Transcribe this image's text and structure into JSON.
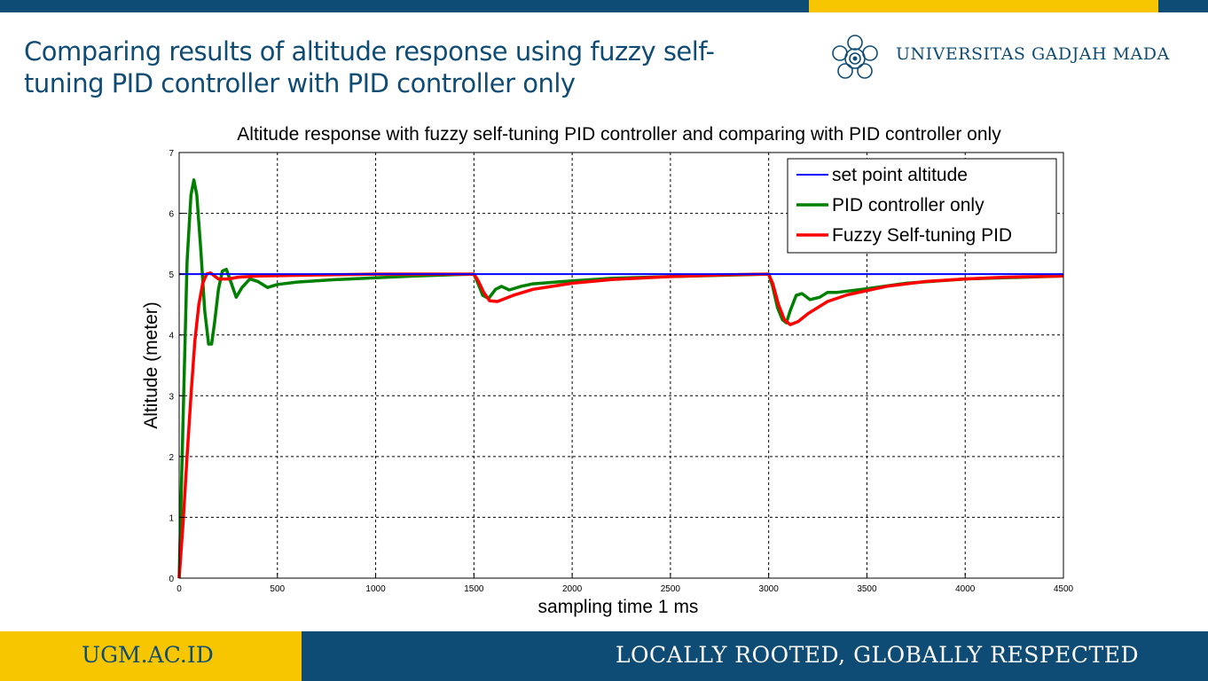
{
  "slide": {
    "title": "Comparing results of altitude response using fuzzy self-tuning PID controller with PID controller only"
  },
  "brand": {
    "university": "UNIVERSITAS GADJAH MADA",
    "logo_icon": "ugm-emblem-icon",
    "primary_color": "#0f4c75",
    "accent_color": "#f7c600"
  },
  "footer": {
    "website": "UGM.AC.ID",
    "tagline": "LOCALLY ROOTED, GLOBALLY RESPECTED"
  },
  "chart_data": {
    "type": "line",
    "title": "Altitude response with fuzzy self-tuning PID controller and comparing with PID controller only",
    "xlabel": "sampling time 1 ms",
    "ylabel": "Altitude (meter)",
    "xlim": [
      0,
      4500
    ],
    "ylim": [
      0,
      7
    ],
    "xticks": [
      0,
      500,
      1000,
      1500,
      2000,
      2500,
      3000,
      3500,
      4000,
      4500
    ],
    "yticks": [
      0,
      1,
      2,
      3,
      4,
      5,
      6,
      7
    ],
    "grid": true,
    "legend_position": "top-right",
    "series": [
      {
        "name": "set point altitude",
        "color": "#0000ff",
        "x": [
          0,
          4500
        ],
        "y": [
          5,
          5
        ]
      },
      {
        "name": "PID controller only",
        "color": "#008000",
        "x": [
          0,
          20,
          40,
          60,
          75,
          90,
          110,
          130,
          150,
          165,
          180,
          200,
          220,
          240,
          260,
          290,
          320,
          360,
          400,
          450,
          500,
          600,
          800,
          1000,
          1200,
          1400,
          1500,
          1520,
          1545,
          1575,
          1610,
          1640,
          1680,
          1740,
          1800,
          2000,
          2200,
          2500,
          3000,
          3020,
          3045,
          3070,
          3090,
          3110,
          3140,
          3170,
          3210,
          3260,
          3300,
          3350,
          3500,
          3700,
          4000,
          4300,
          4500
        ],
        "y": [
          0,
          2.6,
          5.2,
          6.3,
          6.55,
          6.3,
          5.4,
          4.4,
          3.85,
          3.85,
          4.2,
          4.75,
          5.05,
          5.08,
          4.9,
          4.62,
          4.78,
          4.92,
          4.88,
          4.78,
          4.83,
          4.87,
          4.91,
          4.94,
          4.97,
          4.99,
          5.0,
          4.85,
          4.65,
          4.6,
          4.75,
          4.8,
          4.74,
          4.8,
          4.84,
          4.89,
          4.93,
          4.96,
          5.0,
          4.8,
          4.45,
          4.25,
          4.2,
          4.4,
          4.65,
          4.68,
          4.58,
          4.62,
          4.7,
          4.7,
          4.76,
          4.85,
          4.92,
          4.95,
          4.97
        ]
      },
      {
        "name": "Fuzzy Self-tuning PID",
        "color": "#ff0000",
        "x": [
          0,
          20,
          40,
          60,
          80,
          100,
          120,
          140,
          160,
          200,
          250,
          300,
          400,
          600,
          800,
          1000,
          1200,
          1400,
          1500,
          1520,
          1550,
          1580,
          1620,
          1700,
          1800,
          2000,
          2200,
          2500,
          2800,
          3000,
          3020,
          3050,
          3080,
          3110,
          3150,
          3200,
          3300,
          3400,
          3600,
          3800,
          4000,
          4200,
          4500
        ],
        "y": [
          0,
          0.9,
          2.0,
          3.0,
          3.9,
          4.5,
          4.85,
          5.0,
          5.02,
          4.92,
          4.92,
          4.95,
          4.97,
          4.98,
          4.99,
          5.0,
          5.0,
          5.0,
          5.0,
          4.9,
          4.7,
          4.56,
          4.55,
          4.65,
          4.75,
          4.85,
          4.91,
          4.96,
          4.99,
          5.0,
          4.85,
          4.5,
          4.25,
          4.17,
          4.22,
          4.35,
          4.55,
          4.66,
          4.8,
          4.88,
          4.92,
          4.95,
          4.97
        ]
      }
    ]
  }
}
